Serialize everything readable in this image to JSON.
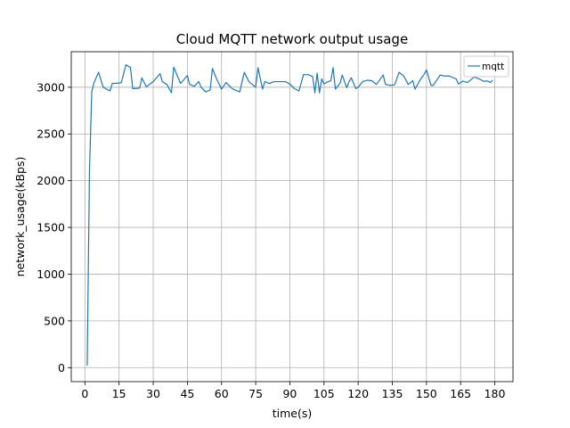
{
  "chart_data": {
    "type": "line",
    "title": "Cloud MQTT network output usage",
    "xlabel": "time(s)",
    "ylabel": "network_usage(kBps)",
    "xlim": [
      -6,
      188
    ],
    "ylim": [
      -150,
      3380
    ],
    "xticks": [
      0,
      15,
      30,
      45,
      60,
      75,
      90,
      105,
      120,
      135,
      150,
      165,
      180
    ],
    "yticks": [
      0,
      500,
      1000,
      1500,
      2000,
      2500,
      3000
    ],
    "grid": true,
    "legend_position": "top-right",
    "series": [
      {
        "name": "mqtt",
        "color": "#1f77b4",
        "x": [
          1,
          2,
          3,
          4,
          6,
          8,
          11,
          12,
          15,
          16,
          18,
          20,
          21,
          24,
          25,
          27,
          30,
          33,
          34,
          36,
          38,
          39,
          42,
          45,
          46,
          48,
          50,
          51,
          53,
          55,
          56,
          58,
          60,
          62,
          64,
          65,
          68,
          70,
          72,
          75,
          76,
          78,
          79,
          81,
          83,
          86,
          88,
          90,
          92,
          94,
          96,
          98,
          100,
          101,
          102,
          103,
          104,
          105,
          106,
          108,
          109,
          110,
          112,
          113,
          115,
          116,
          117,
          119,
          120,
          122,
          124,
          126,
          128,
          131,
          132,
          134,
          136,
          138,
          140,
          142,
          144,
          145,
          147,
          149,
          150,
          152,
          153,
          156,
          158,
          160,
          161,
          163,
          164,
          166,
          168,
          171,
          173,
          175,
          177,
          178,
          179
        ],
        "y": [
          20,
          2100,
          2950,
          3050,
          3160,
          3000,
          2960,
          3040,
          3045,
          3050,
          3240,
          3210,
          2985,
          2990,
          3100,
          3005,
          3060,
          3145,
          3060,
          3030,
          2940,
          3215,
          3040,
          3125,
          3030,
          3010,
          3060,
          3000,
          2950,
          2970,
          3200,
          3080,
          2980,
          3050,
          3000,
          2980,
          2950,
          3160,
          3060,
          3000,
          3210,
          2980,
          3060,
          3040,
          3060,
          3060,
          3060,
          3035,
          2985,
          2960,
          3135,
          3135,
          3115,
          2940,
          3150,
          2940,
          3090,
          3035,
          3050,
          3070,
          3210,
          2980,
          3040,
          3130,
          2995,
          3060,
          3100,
          2985,
          3000,
          3060,
          3075,
          3070,
          3030,
          3130,
          3030,
          3020,
          3025,
          3160,
          3120,
          3030,
          3070,
          2980,
          3070,
          3140,
          3185,
          3020,
          3020,
          3130,
          3120,
          3120,
          3110,
          3090,
          3035,
          3065,
          3050,
          3110,
          3090,
          3065,
          3065,
          3050,
          3075
        ]
      }
    ]
  }
}
